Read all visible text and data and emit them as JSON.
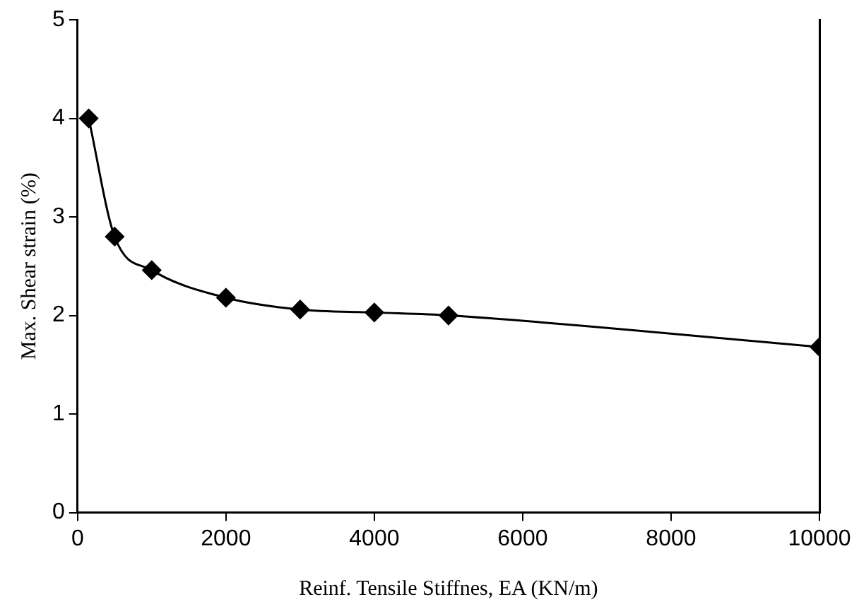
{
  "chart_data": {
    "type": "line",
    "xlabel": "Reinf. Tensile Stiffnes, EA (KN/m)",
    "ylabel": "Max. Shear strain (%)",
    "x": [
      150,
      500,
      1000,
      2000,
      3000,
      4000,
      5000,
      10000
    ],
    "series": [
      {
        "color": "#000000",
        "values": [
          4.0,
          2.8,
          2.46,
          2.18,
          2.06,
          2.03,
          2.0,
          1.68
        ]
      }
    ],
    "xlim": [
      0,
      10000
    ],
    "xticks": [
      0,
      2000,
      4000,
      6000,
      8000,
      10000
    ],
    "ylim": [
      0,
      5
    ],
    "yticks": [
      0,
      1,
      2,
      3,
      4,
      5
    ],
    "grid": false,
    "legend": false,
    "marker": "diamond",
    "line_style": "solid"
  }
}
